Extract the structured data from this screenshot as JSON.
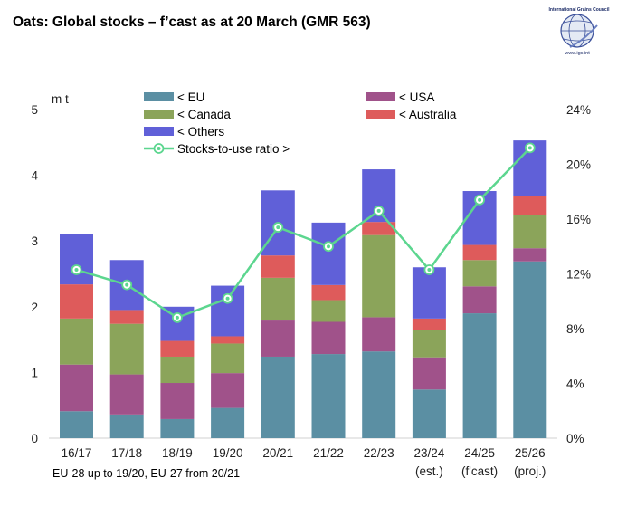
{
  "title": "Oats: Global stocks – f’cast as at 20 March (GMR 563)",
  "logo": {
    "name": "International Grains Council",
    "url": "www.igc.int"
  },
  "footnote": "EU-28 up to 19/20, EU-27 from 20/21",
  "chart_data": {
    "type": "bar",
    "stacked": true,
    "categories": [
      "16/17",
      "17/18",
      "18/19",
      "19/20",
      "20/21",
      "21/22",
      "22/23",
      "23/24",
      "24/25",
      "25/26"
    ],
    "category_sublabels": [
      "",
      "",
      "",
      "",
      "",
      "",
      "",
      "(est.)",
      "(f'cast)",
      "(proj.)"
    ],
    "y_unit": "m t",
    "ylim": [
      0,
      5
    ],
    "y_ticks": [
      "0",
      "1",
      "2",
      "3",
      "4",
      "5"
    ],
    "y2lim": [
      0,
      24
    ],
    "y2_ticks": [
      "0%",
      "4%",
      "8%",
      "12%",
      "16%",
      "20%",
      "24%"
    ],
    "series": [
      {
        "name": "< EU",
        "color": "#5b8fa3",
        "values": [
          0.41,
          0.36,
          0.29,
          0.46,
          1.24,
          1.28,
          1.32,
          0.74,
          1.9,
          2.69
        ]
      },
      {
        "name": "< USA",
        "color": "#a0528a",
        "values": [
          0.71,
          0.61,
          0.55,
          0.53,
          0.55,
          0.49,
          0.52,
          0.49,
          0.41,
          0.2
        ]
      },
      {
        "name": "< Canada",
        "color": "#8ba45a",
        "values": [
          0.7,
          0.77,
          0.4,
          0.45,
          0.65,
          0.33,
          1.25,
          0.42,
          0.4,
          0.5
        ]
      },
      {
        "name": "< Australia",
        "color": "#de5b5b",
        "values": [
          0.52,
          0.21,
          0.24,
          0.11,
          0.34,
          0.23,
          0.2,
          0.17,
          0.23,
          0.3
        ]
      },
      {
        "name": "< Others",
        "color": "#6060d8",
        "values": [
          0.76,
          0.76,
          0.52,
          0.77,
          0.99,
          0.95,
          0.8,
          0.78,
          0.82,
          0.84
        ]
      }
    ],
    "line_series": {
      "name": "Stocks-to-use ratio >",
      "color": "#5cd68f",
      "axis": "right",
      "values": [
        12.3,
        11.2,
        8.8,
        10.2,
        15.4,
        14.0,
        16.6,
        12.3,
        17.4,
        21.2
      ]
    },
    "legend": [
      {
        "label": "< EU",
        "color": "#5b8fa3",
        "kind": "bar"
      },
      {
        "label": "< USA",
        "color": "#a0528a",
        "kind": "bar"
      },
      {
        "label": "< Canada",
        "color": "#8ba45a",
        "kind": "bar"
      },
      {
        "label": "< Australia",
        "color": "#de5b5b",
        "kind": "bar"
      },
      {
        "label": "< Others",
        "color": "#6060d8",
        "kind": "bar"
      },
      {
        "label": "Stocks-to-use ratio >",
        "color": "#5cd68f",
        "kind": "line"
      }
    ]
  }
}
